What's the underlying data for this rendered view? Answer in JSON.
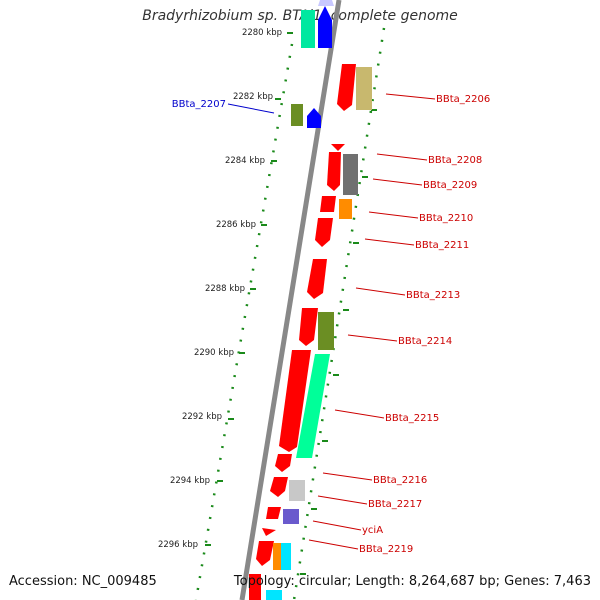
{
  "title": "Bradyrhizobium sp. BTAi1, complete genome",
  "footer": {
    "accession": "Accession: NC_009485",
    "stats": "Topology: circular; Length: 8,264,687 bp; Genes: 7,463"
  },
  "scale_labels": [
    "2280 kbp",
    "2282 kbp",
    "2284 kbp",
    "2286 kbp",
    "2288 kbp",
    "2290 kbp",
    "2292 kbp",
    "2294 kbp",
    "2296 kbp"
  ],
  "genes": [
    {
      "label": "BBta_2206",
      "color": "#cc0000"
    },
    {
      "label": "BBta_2207",
      "color": "#0000cc"
    },
    {
      "label": "BBta_2208",
      "color": "#cc0000"
    },
    {
      "label": "BBta_2209",
      "color": "#cc0000"
    },
    {
      "label": "BBta_2210",
      "color": "#cc0000"
    },
    {
      "label": "BBta_2211",
      "color": "#cc0000"
    },
    {
      "label": "BBta_2213",
      "color": "#cc0000"
    },
    {
      "label": "BBta_2214",
      "color": "#cc0000"
    },
    {
      "label": "BBta_2215",
      "color": "#cc0000"
    },
    {
      "label": "BBta_2216",
      "color": "#cc0000"
    },
    {
      "label": "BBta_2217",
      "color": "#cc0000"
    },
    {
      "label": "yciA",
      "color": "#cc0000"
    },
    {
      "label": "BBta_2219",
      "color": "#cc0000"
    }
  ],
  "colors": {
    "backbone": "#888888",
    "tick_dots": "#1a8a1a",
    "gene_red": "#ff0000",
    "gene_blue": "#0000ff",
    "gene_olive": "#6b8e23",
    "gene_khaki": "#c8b86e",
    "gene_gray": "#707070",
    "gene_orange": "#ff8c00",
    "gene_spring": "#00ff99",
    "gene_silver": "#c8c8c8",
    "gene_slate": "#6a5acd",
    "gene_cyan": "#00e5ff",
    "gene_lavender": "#c8c8ff"
  }
}
